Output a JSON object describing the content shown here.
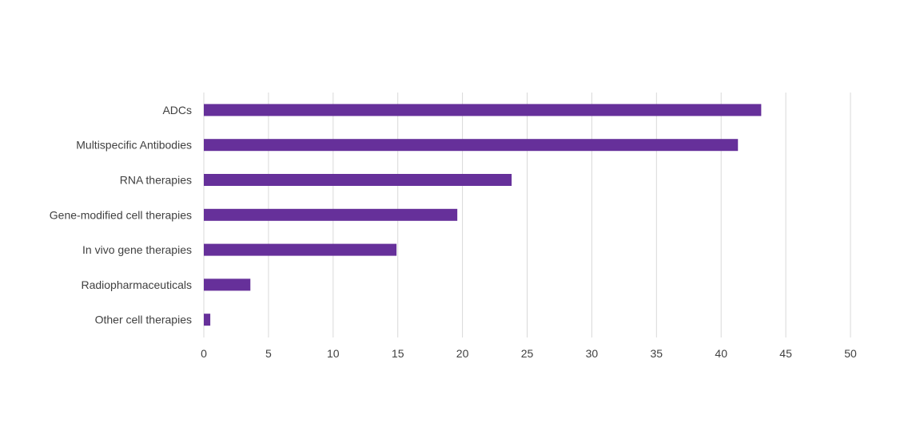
{
  "chart_data": {
    "type": "bar",
    "orientation": "horizontal",
    "categories": [
      "ADCs",
      "Multispecific Antibodies",
      "RNA therapies",
      "Gene-modified cell therapies",
      "In vivo gene therapies",
      "Radiopharmaceuticals",
      "Other cell therapies"
    ],
    "values": [
      43.1,
      41.3,
      23.8,
      19.6,
      14.9,
      3.6,
      0.5
    ],
    "xlim": [
      0,
      50
    ],
    "xticks": [
      0,
      5,
      10,
      15,
      20,
      25,
      30,
      35,
      40,
      45,
      50
    ],
    "grid": "vertical",
    "legend": "none",
    "title": "",
    "xlabel": "",
    "ylabel": "",
    "colors": {
      "bar": "#66309a",
      "grid": "#d9d9d9",
      "text": "#404040"
    }
  }
}
